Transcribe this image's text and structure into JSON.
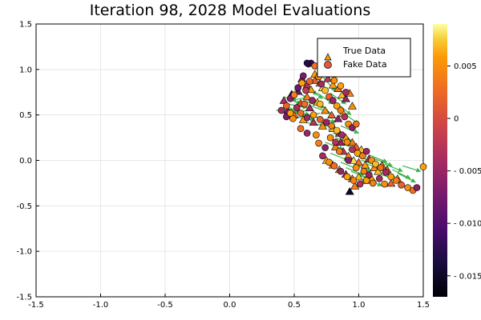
{
  "chart_data": {
    "type": "scatter",
    "title": "Iteration 98, 2028 Model Evaluations",
    "xlabel": "",
    "ylabel": "",
    "xlim": [
      -1.5,
      1.5
    ],
    "ylim": [
      -1.5,
      1.5
    ],
    "x_ticks": [
      -1.5,
      -1.0,
      -0.5,
      0.0,
      0.5,
      1.0,
      1.5
    ],
    "x_tick_labels": [
      "-1.5",
      "-1.0",
      "-0.5",
      "0.0",
      "0.5",
      "1.0",
      "1.5"
    ],
    "y_ticks": [
      -1.5,
      -1.0,
      -0.5,
      0.0,
      0.5,
      1.0,
      1.5
    ],
    "y_tick_labels": [
      "-1.5",
      "-1.0",
      "-0.5",
      "0.0",
      "0.5",
      "1.0",
      "1.5"
    ],
    "grid": true,
    "legend_position": "top-right",
    "colorbar": {
      "colormap": "inferno",
      "range": [
        -0.017,
        0.009
      ],
      "ticks": [
        0.005,
        0,
        -0.005,
        -0.01,
        -0.015
      ],
      "tick_labels": [
        "0.005",
        "0",
        "- 0.005",
        "- 0.010",
        "- 0.015"
      ]
    },
    "arrow_color": "#3cb44b",
    "series": [
      {
        "name": "True Data",
        "marker": "triangle",
        "color": "#f39c12",
        "points": [
          [
            0.42,
            0.66,
            -0.004
          ],
          [
            0.48,
            0.73,
            -0.012
          ],
          [
            0.53,
            0.76,
            -0.008
          ],
          [
            0.56,
            0.9,
            -0.006
          ],
          [
            0.6,
            0.83,
            -0.003
          ],
          [
            0.63,
            0.78,
            0.006
          ],
          [
            0.66,
            0.88,
            0.002
          ],
          [
            0.7,
            0.85,
            0.004
          ],
          [
            0.72,
            0.8,
            0.008
          ],
          [
            0.76,
            0.9,
            -0.002
          ],
          [
            0.8,
            0.83,
            0.006
          ],
          [
            0.84,
            0.79,
            0.003
          ],
          [
            0.87,
            0.72,
            0.007
          ],
          [
            0.9,
            0.68,
            -0.005
          ],
          [
            0.93,
            0.74,
            0.004
          ],
          [
            0.95,
            0.6,
            0.005
          ],
          [
            0.55,
            0.63,
            0.001
          ],
          [
            0.62,
            0.58,
            -0.004
          ],
          [
            0.68,
            0.64,
            0.007
          ],
          [
            0.74,
            0.55,
            0.005
          ],
          [
            0.79,
            0.5,
            0.002
          ],
          [
            0.84,
            0.46,
            -0.006
          ],
          [
            0.88,
            0.52,
            0.008
          ],
          [
            0.6,
            0.7,
            0.004
          ],
          [
            0.45,
            0.55,
            -0.007
          ],
          [
            0.5,
            0.5,
            0.003
          ],
          [
            0.57,
            0.45,
            0.006
          ],
          [
            0.65,
            0.42,
            -0.003
          ],
          [
            0.72,
            0.38,
            0.005
          ],
          [
            0.8,
            0.35,
            0.007
          ],
          [
            0.85,
            0.3,
            -0.004
          ],
          [
            0.9,
            0.25,
            0.006
          ],
          [
            0.95,
            0.2,
            0.004
          ],
          [
            0.98,
            0.15,
            0.002
          ],
          [
            1.02,
            0.12,
            0.007
          ],
          [
            0.88,
            0.1,
            -0.002
          ],
          [
            0.92,
            0.05,
            0.005
          ],
          [
            0.96,
            0.0,
            0.008
          ],
          [
            1.0,
            -0.02,
            0.003
          ],
          [
            1.05,
            -0.05,
            0.006
          ],
          [
            1.08,
            0.02,
            -0.003
          ],
          [
            1.12,
            -0.08,
            0.005
          ],
          [
            1.15,
            -0.12,
            0.007
          ],
          [
            1.18,
            -0.05,
            0.004
          ],
          [
            1.22,
            -0.1,
            0.002
          ],
          [
            0.85,
            -0.1,
            0.006
          ],
          [
            0.9,
            -0.15,
            -0.004
          ],
          [
            0.95,
            -0.2,
            0.005
          ],
          [
            1.0,
            -0.18,
            0.007
          ],
          [
            1.05,
            -0.22,
            0.003
          ],
          [
            0.93,
            -0.34,
            -0.015
          ],
          [
            0.97,
            -0.28,
            0.004
          ],
          [
            1.1,
            -0.2,
            0.006
          ],
          [
            0.8,
            -0.05,
            0.005
          ],
          [
            0.75,
            0.0,
            0.007
          ],
          [
            1.25,
            -0.25,
            0.002
          ],
          [
            1.3,
            -0.2,
            0.005
          ],
          [
            0.82,
            0.15,
            0.004
          ],
          [
            0.86,
            0.2,
            -0.005
          ],
          [
            0.66,
            0.95,
            0.006
          ]
        ]
      },
      {
        "name": "Fake Data",
        "marker": "circle",
        "color": "#e05a3c",
        "points": [
          [
            0.4,
            0.55,
            -0.004
          ],
          [
            0.44,
            0.6,
            0.002
          ],
          [
            0.47,
            0.68,
            -0.006
          ],
          [
            0.5,
            0.72,
            0.004
          ],
          [
            0.53,
            0.8,
            -0.008
          ],
          [
            0.56,
            0.85,
            0.006
          ],
          [
            0.59,
            0.77,
            -0.002
          ],
          [
            0.61,
            1.06,
            -0.01
          ],
          [
            0.63,
            1.07,
            -0.012
          ],
          [
            0.66,
            1.04,
            0.003
          ],
          [
            0.69,
            0.92,
            0.005
          ],
          [
            0.71,
            0.84,
            -0.004
          ],
          [
            0.74,
            0.77,
            0.007
          ],
          [
            0.77,
            0.7,
            0.002
          ],
          [
            0.8,
            0.66,
            -0.005
          ],
          [
            0.83,
            0.6,
            0.006
          ],
          [
            0.86,
            0.55,
            0.004
          ],
          [
            0.89,
            0.48,
            -0.003
          ],
          [
            0.92,
            0.4,
            0.005
          ],
          [
            0.95,
            0.36,
            -0.006
          ],
          [
            0.98,
            0.4,
            0.003
          ],
          [
            0.44,
            0.48,
            -0.007
          ],
          [
            0.49,
            0.46,
            0.005
          ],
          [
            0.55,
            0.52,
            0.003
          ],
          [
            0.6,
            0.47,
            -0.004
          ],
          [
            0.65,
            0.5,
            0.006
          ],
          [
            0.7,
            0.45,
            0.002
          ],
          [
            0.75,
            0.42,
            -0.005
          ],
          [
            0.79,
            0.38,
            0.004
          ],
          [
            0.83,
            0.33,
            0.007
          ],
          [
            0.87,
            0.28,
            -0.004
          ],
          [
            0.91,
            0.2,
            0.005
          ],
          [
            0.95,
            0.12,
            -0.003
          ],
          [
            0.99,
            0.08,
            0.006
          ],
          [
            1.03,
            0.05,
            0.004
          ],
          [
            1.06,
            0.1,
            -0.005
          ],
          [
            1.1,
            0.0,
            0.005
          ],
          [
            1.13,
            -0.04,
            0.007
          ],
          [
            1.17,
            -0.08,
            0.003
          ],
          [
            1.21,
            -0.13,
            -0.004
          ],
          [
            1.25,
            -0.18,
            0.006
          ],
          [
            1.29,
            -0.22,
            0.004
          ],
          [
            1.33,
            -0.27,
            0.002
          ],
          [
            1.38,
            -0.3,
            0.005
          ],
          [
            1.42,
            -0.33,
            0.003
          ],
          [
            1.45,
            -0.3,
            -0.006
          ],
          [
            1.5,
            -0.07,
            0.006
          ],
          [
            0.72,
            0.05,
            -0.004
          ],
          [
            0.77,
            -0.02,
            0.005
          ],
          [
            0.81,
            -0.06,
            0.003
          ],
          [
            0.86,
            -0.12,
            -0.005
          ],
          [
            0.91,
            -0.18,
            0.006
          ],
          [
            0.96,
            -0.22,
            0.004
          ],
          [
            1.01,
            -0.26,
            -0.003
          ],
          [
            1.06,
            -0.22,
            0.006
          ],
          [
            1.11,
            -0.25,
            0.004
          ],
          [
            1.16,
            -0.2,
            -0.004
          ],
          [
            1.2,
            -0.26,
            0.005
          ],
          [
            0.69,
            0.19,
            0.004
          ],
          [
            0.74,
            0.14,
            -0.006
          ],
          [
            0.78,
            0.25,
            0.005
          ],
          [
            0.82,
            0.2,
            -0.003
          ],
          [
            0.7,
            0.62,
            0.007
          ],
          [
            0.64,
            0.66,
            -0.005
          ],
          [
            0.58,
            0.62,
            0.003
          ],
          [
            0.52,
            0.58,
            -0.004
          ],
          [
            0.47,
            0.52,
            0.006
          ],
          [
            0.73,
            0.97,
            0.004
          ],
          [
            0.77,
            0.95,
            -0.006
          ],
          [
            0.81,
            0.88,
            0.005
          ],
          [
            0.86,
            0.82,
            0.006
          ],
          [
            0.9,
            0.75,
            -0.004
          ],
          [
            0.55,
            0.35,
            0.003
          ],
          [
            0.6,
            0.3,
            -0.005
          ],
          [
            0.67,
            0.28,
            0.005
          ],
          [
            0.85,
            0.1,
            0.004
          ],
          [
            0.92,
            0.0,
            -0.006
          ],
          [
            0.98,
            -0.08,
            0.005
          ],
          [
            1.04,
            -0.12,
            0.004
          ],
          [
            1.08,
            -0.16,
            -0.005
          ],
          [
            0.6,
            1.07,
            -0.013
          ],
          [
            0.57,
            0.93,
            -0.007
          ],
          [
            0.62,
            0.87,
            0.002
          ],
          [
            0.84,
            1.02,
            0.007
          ],
          [
            0.88,
            0.96,
            -0.004
          ]
        ]
      }
    ],
    "arrows": [
      [
        0.42,
        0.7,
        0.55,
        0.62
      ],
      [
        0.5,
        0.78,
        0.62,
        0.66
      ],
      [
        0.55,
        0.86,
        0.68,
        0.72
      ],
      [
        0.6,
        0.8,
        0.72,
        0.68
      ],
      [
        0.48,
        0.55,
        0.62,
        0.5
      ],
      [
        0.52,
        0.48,
        0.66,
        0.44
      ],
      [
        0.58,
        0.42,
        0.74,
        0.38
      ],
      [
        0.63,
        0.6,
        0.78,
        0.52
      ],
      [
        0.68,
        0.74,
        0.8,
        0.62
      ],
      [
        0.72,
        0.92,
        0.82,
        0.76
      ],
      [
        0.45,
        0.62,
        0.6,
        0.58
      ],
      [
        0.36,
        0.55,
        0.5,
        0.56
      ],
      [
        0.66,
        0.48,
        0.82,
        0.42
      ],
      [
        0.7,
        0.4,
        0.84,
        0.34
      ],
      [
        0.76,
        0.34,
        0.9,
        0.28
      ],
      [
        0.82,
        0.25,
        0.96,
        0.18
      ],
      [
        0.88,
        0.18,
        1.02,
        0.1
      ],
      [
        0.92,
        0.12,
        1.06,
        0.04
      ],
      [
        0.98,
        0.05,
        1.12,
        -0.02
      ],
      [
        1.02,
        0.0,
        1.16,
        -0.06
      ],
      [
        1.06,
        -0.04,
        1.2,
        -0.1
      ],
      [
        1.1,
        -0.08,
        1.24,
        -0.14
      ],
      [
        1.14,
        -0.12,
        1.28,
        -0.18
      ],
      [
        1.18,
        -0.16,
        1.32,
        -0.22
      ],
      [
        0.86,
        -0.02,
        1.0,
        -0.1
      ],
      [
        0.9,
        -0.08,
        1.04,
        -0.16
      ],
      [
        0.94,
        -0.12,
        1.08,
        -0.2
      ],
      [
        1.0,
        -0.16,
        1.14,
        -0.24
      ],
      [
        1.04,
        -0.2,
        1.18,
        -0.28
      ],
      [
        1.26,
        -0.1,
        1.4,
        -0.2
      ],
      [
        1.3,
        -0.14,
        1.44,
        -0.24
      ],
      [
        1.34,
        -0.06,
        1.48,
        -0.12
      ],
      [
        0.78,
        0.08,
        0.92,
        0.0
      ],
      [
        0.74,
        0.2,
        0.88,
        0.12
      ],
      [
        0.8,
        0.3,
        0.94,
        0.22
      ],
      [
        0.86,
        0.38,
        1.0,
        0.3
      ],
      [
        0.9,
        0.5,
        1.0,
        0.4
      ],
      [
        0.84,
        0.62,
        0.94,
        0.5
      ],
      [
        0.78,
        0.74,
        0.9,
        0.62
      ],
      [
        0.62,
        0.7,
        0.48,
        0.66
      ],
      [
        0.7,
        0.52,
        0.56,
        0.48
      ],
      [
        0.64,
        0.56,
        0.5,
        0.52
      ],
      [
        1.08,
        0.06,
        1.22,
        -0.02
      ],
      [
        1.12,
        0.02,
        1.26,
        -0.06
      ],
      [
        0.96,
        -0.04,
        1.1,
        -0.12
      ],
      [
        1.2,
        -0.04,
        1.34,
        -0.12
      ],
      [
        0.56,
        0.72,
        0.7,
        0.64
      ],
      [
        0.6,
        0.64,
        0.74,
        0.58
      ]
    ]
  }
}
